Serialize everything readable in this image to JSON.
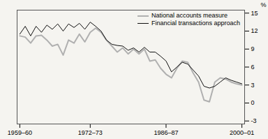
{
  "chart_data": {
    "type": "line",
    "ylabel": "%",
    "x": [
      1959.5,
      1960.5,
      1961.5,
      1962.5,
      1963.5,
      1964.5,
      1965.5,
      1966.5,
      1967.5,
      1968.5,
      1969.5,
      1970.5,
      1971.5,
      1972.5,
      1973.5,
      1974.5,
      1975.5,
      1976.5,
      1977.5,
      1978.5,
      1979.5,
      1980.5,
      1981.5,
      1982.5,
      1983.5,
      1984.5,
      1985.5,
      1986.5,
      1987.5,
      1988.5,
      1989.5,
      1990.5,
      1991.5,
      1992.5,
      1993.5,
      1994.5,
      1995.5,
      1996.5,
      1997.5,
      1998.5,
      1999.5,
      2000.5
    ],
    "series": [
      {
        "name": "National accounts measure",
        "color": "#b0b0b0",
        "values": [
          11.2,
          11.0,
          10.0,
          11.2,
          11.3,
          10.5,
          9.5,
          9.8,
          8.0,
          10.5,
          10.0,
          11.5,
          10.2,
          11.8,
          12.5,
          11.8,
          10.5,
          9.5,
          8.5,
          9.2,
          8.2,
          9.0,
          8.2,
          9.0,
          7.0,
          7.2,
          5.8,
          4.8,
          4.2,
          5.8,
          7.0,
          6.8,
          5.0,
          3.5,
          0.5,
          0.2,
          3.5,
          4.2,
          4.0,
          3.5,
          3.2,
          3.0
        ]
      },
      {
        "name": "Financial transactions approach",
        "color": "#111111",
        "values": [
          11.5,
          12.8,
          11.2,
          12.8,
          11.8,
          13.0,
          12.3,
          13.2,
          12.0,
          13.2,
          12.6,
          13.3,
          12.3,
          13.5,
          12.8,
          12.0,
          10.5,
          9.8,
          9.6,
          9.5,
          8.8,
          9.2,
          8.5,
          9.3,
          8.5,
          8.5,
          7.8,
          7.0,
          5.2,
          6.0,
          6.8,
          6.5,
          5.5,
          4.5,
          2.8,
          2.5,
          2.8,
          3.5,
          4.2,
          3.8,
          3.5,
          3.2
        ]
      }
    ],
    "xlim": [
      1959,
      2001
    ],
    "xticks": [
      {
        "value": 1959.5,
        "label": "1959–60"
      },
      {
        "value": 1972.5,
        "label": "1972–73"
      },
      {
        "value": 1986.5,
        "label": "1986–87"
      },
      {
        "value": 2000.5,
        "label": "2000–01"
      }
    ],
    "ylim": [
      -3.5,
      15.5
    ],
    "yticks": [
      -3,
      0,
      3,
      6,
      9,
      12,
      15
    ],
    "legend": "upper right"
  }
}
